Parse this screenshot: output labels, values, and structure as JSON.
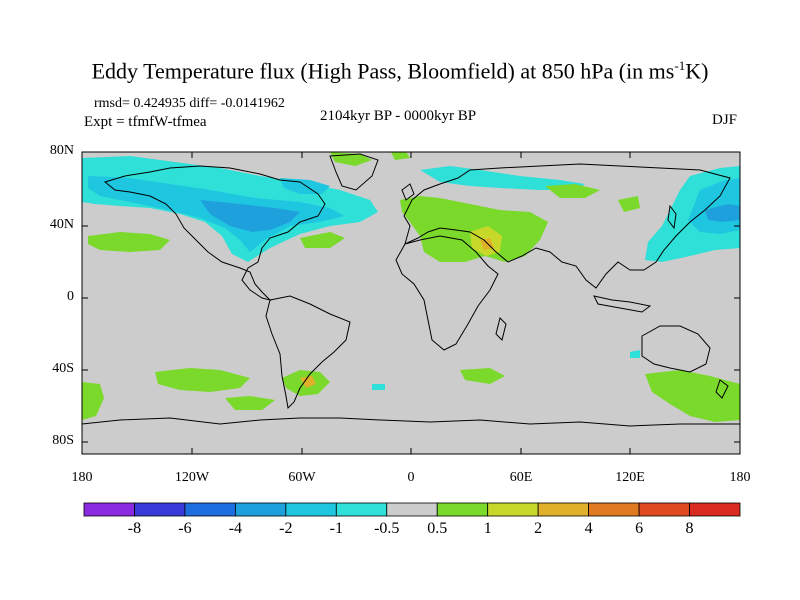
{
  "title_main": "Eddy Temperature flux (High Pass, Bloomfield) at 850 hPa (in ms",
  "title_sup": "-1",
  "title_end": "K)",
  "stats": "rmsd= 0.424935 diff= -0.0141962",
  "experiment": "Expt = tfmfW-tfmea",
  "period": "2104kyr BP - 0000kyr BP",
  "season": "DJF",
  "lat_labels": [
    "80N",
    "40N",
    "0",
    "40S",
    "80S"
  ],
  "lon_labels": [
    "180",
    "120W",
    "60W",
    "0",
    "60E",
    "120E",
    "180"
  ],
  "colorbar": {
    "labels": [
      "-8",
      "-6",
      "-4",
      "-2",
      "-1",
      "-0.5",
      "0.5",
      "1",
      "2",
      "4",
      "6",
      "8"
    ],
    "colors": [
      "#8a2be2",
      "#3a3ad8",
      "#1e6ee0",
      "#1ea0dc",
      "#1ec6e0",
      "#2ee0d8",
      "#cccccc",
      "#7ad92a",
      "#c8d82a",
      "#e0b02a",
      "#e07a20",
      "#e04a20",
      "#d82a20"
    ]
  },
  "colors": {
    "land_bg": "#cccccc",
    "neg1": "#2ee0d8",
    "neg2": "#1ec6e0",
    "neg4": "#1ea0dc",
    "pos1": "#7ad92a",
    "pos2": "#c8d82a",
    "pos4": "#e0b02a"
  }
}
